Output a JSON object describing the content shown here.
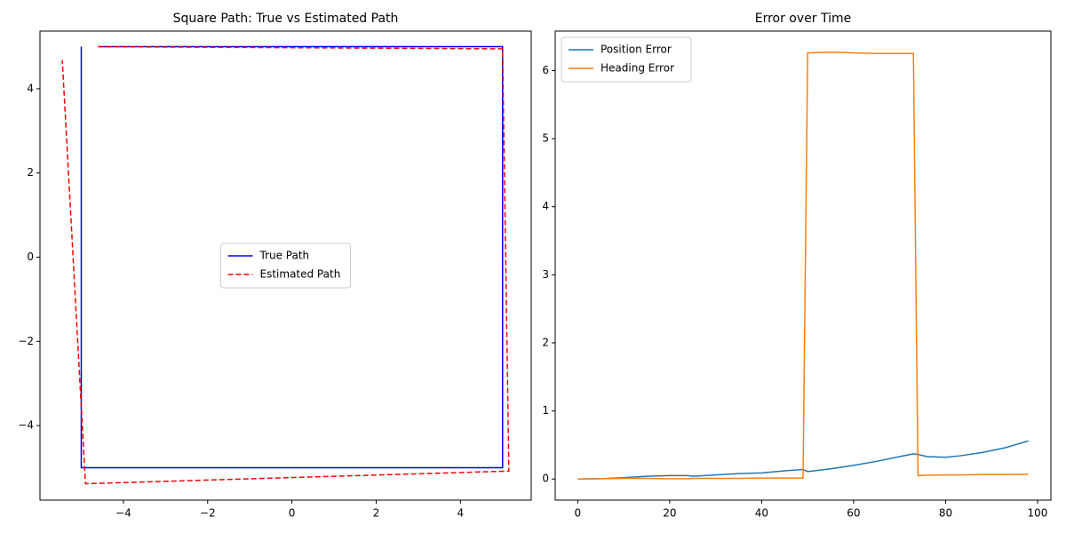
{
  "chart_data": [
    {
      "type": "line",
      "title": "Square Path: True vs Estimated Path",
      "xlim": [
        -5.98,
        5.68
      ],
      "ylim": [
        -5.77,
        5.37
      ],
      "xticks": [
        {
          "value": -4,
          "label": "−4"
        },
        {
          "value": -2,
          "label": "−2"
        },
        0,
        2,
        4
      ],
      "yticks": [
        {
          "value": -4,
          "label": "−4"
        },
        {
          "value": -2,
          "label": "−2"
        },
        0,
        2,
        4
      ],
      "legend": "center",
      "series": [
        {
          "name": "True Path",
          "color": "#0000ff",
          "linestyle": "solid",
          "x": [
            -4.6,
            5,
            5,
            -5,
            -5
          ],
          "values": [
            5,
            5,
            -5,
            -5,
            5
          ]
        },
        {
          "name": "Estimated Path",
          "color": "#ff0000",
          "linestyle": "dashed",
          "x": [
            -4.6,
            5.0,
            5.15,
            -4.9,
            -5.45
          ],
          "values": [
            5,
            4.95,
            -5.08,
            -5.38,
            4.68
          ]
        }
      ]
    },
    {
      "type": "line",
      "title": "Error over Time",
      "xlim": [
        -4.9,
        102.9
      ],
      "ylim": [
        -0.31,
        6.58
      ],
      "xticks": [
        0,
        20,
        40,
        60,
        80,
        100
      ],
      "yticks": [
        0,
        1,
        2,
        3,
        4,
        5,
        6
      ],
      "legend": "upper left",
      "x": [
        0,
        5,
        10,
        15,
        20,
        24,
        25,
        30,
        35,
        40,
        45,
        49,
        50,
        55,
        60,
        65,
        70,
        73,
        74,
        76,
        80,
        83,
        88,
        93,
        98
      ],
      "series": [
        {
          "name": "Position Error",
          "color": "#1f77b4",
          "linestyle": "solid",
          "values": [
            0,
            0.005,
            0.02,
            0.04,
            0.05,
            0.05,
            0.04,
            0.06,
            0.08,
            0.09,
            0.12,
            0.14,
            0.11,
            0.15,
            0.2,
            0.26,
            0.33,
            0.37,
            0.36,
            0.33,
            0.32,
            0.34,
            0.39,
            0.46,
            0.56
          ]
        },
        {
          "name": "Heading Error",
          "color": "#ff7f0e",
          "linestyle": "solid",
          "values": [
            0,
            0.005,
            0.01,
            0.01,
            0.005,
            0.005,
            0.01,
            0.01,
            0.01,
            0.015,
            0.015,
            0.015,
            6.26,
            6.27,
            6.26,
            6.25,
            6.25,
            6.25,
            0.05,
            0.055,
            0.06,
            0.06,
            0.065,
            0.065,
            0.07
          ]
        }
      ]
    }
  ]
}
